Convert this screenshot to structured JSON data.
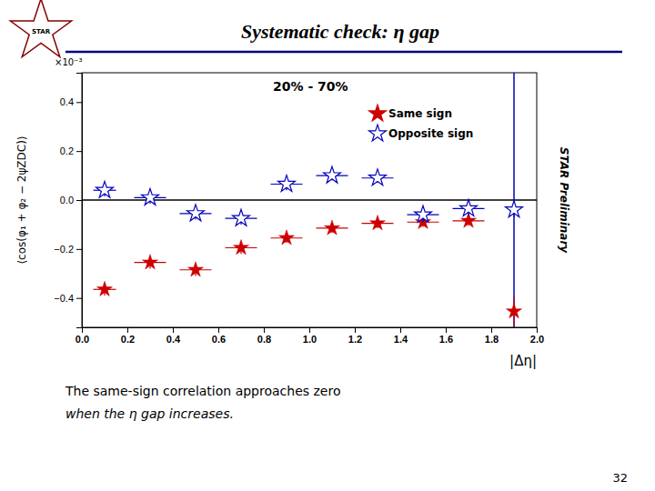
{
  "chart_data": {
    "type": "scatter",
    "title": "Systematic check: η gap",
    "x_label": "|Δη|",
    "y_label": "⟨cos(φ₁ + φ₂ − 2ψZDC)⟩",
    "xlim": [
      0,
      2.0
    ],
    "ylim": [
      -0.52,
      0.52
    ],
    "xticks": [
      {
        "value": 0,
        "label": "0.0"
      },
      0.2,
      0.4,
      0.6,
      0.8,
      {
        "value": 1.0,
        "label": "1.0"
      },
      1.2,
      1.4,
      1.6,
      1.8,
      {
        "value": 2.0,
        "label": "2.0"
      }
    ],
    "yticks": [
      {
        "value": -0.4,
        "label": "−0.4"
      },
      {
        "value": -0.2,
        "label": "−0.2"
      },
      {
        "value": 0.0,
        "label": "0.0"
      },
      0.2,
      0.4
    ],
    "grid": false,
    "legend": "upper right",
    "series": [
      {
        "name": "Same sign",
        "color": "#cc0000",
        "marker": "star",
        "x": [
          0.1,
          0.3,
          0.5,
          0.7,
          0.9,
          1.1,
          1.3,
          1.5,
          1.7,
          1.9
        ],
        "values": [
          -0.365,
          -0.255,
          -0.285,
          -0.195,
          -0.155,
          -0.115,
          -0.095,
          -0.09,
          -0.085,
          -0.455
        ],
        "x_err": [
          0.05,
          0.07,
          0.07,
          0.07,
          0.07,
          0.07,
          0.07,
          0.07,
          0.07,
          0.005
        ],
        "y_err": [
          0.025,
          0.025,
          0.025,
          0.025,
          0.02,
          0.02,
          0.02,
          0.02,
          0.02,
          0.06
        ]
      },
      {
        "name": "Opposite sign",
        "color": "#0000bb",
        "marker": "star-open",
        "x": [
          0.1,
          0.3,
          0.5,
          0.7,
          0.9,
          1.1,
          1.3,
          1.5,
          1.7,
          1.9
        ],
        "values": [
          0.04,
          0.01,
          -0.055,
          -0.075,
          0.065,
          0.1,
          0.09,
          -0.06,
          -0.035,
          -0.04
        ],
        "x_err": [
          0.05,
          0.07,
          0.07,
          0.07,
          0.07,
          0.07,
          0.07,
          0.07,
          0.07,
          0.005
        ],
        "y_err": [
          0.025,
          0.025,
          0.025,
          0.025,
          0.025,
          0.02,
          0.02,
          0.03,
          0.03,
          0.03
        ]
      }
    ],
    "hlines": [
      {
        "value": 0
      }
    ],
    "vlines": [
      {
        "value": 1.9,
        "color": "#0000bb"
      }
    ],
    "annotations": [
      {
        "text": "×10⁻³"
      },
      {
        "text": "20% - 70%"
      },
      {
        "text": "STAR Preliminary"
      },
      {
        "text": "STAR"
      },
      {
        "text": "The same-sign correlation approaches zero"
      },
      {
        "text": "when the η gap increases."
      },
      {
        "text": "32"
      }
    ]
  }
}
